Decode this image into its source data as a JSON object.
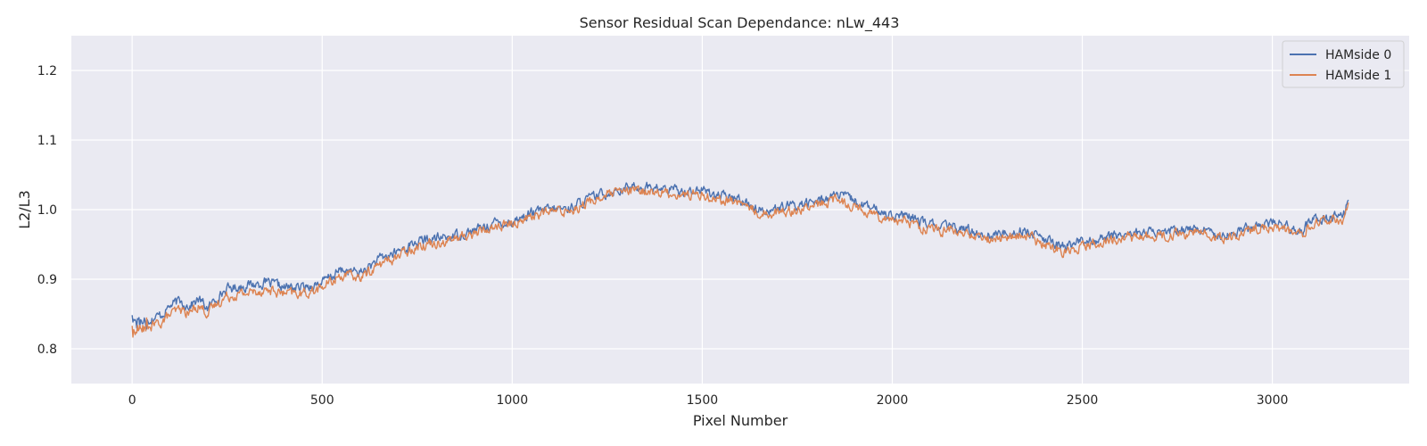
{
  "chart_data": {
    "type": "line",
    "title": "Sensor Residual Scan Dependance: nLw_443",
    "xlabel": "Pixel Number",
    "ylabel": "L2/L3",
    "xlim": [
      -160,
      3360
    ],
    "ylim": [
      0.75,
      1.25
    ],
    "xticks": [
      0,
      500,
      1000,
      1500,
      2000,
      2500,
      3000
    ],
    "yticks": [
      0.8,
      0.9,
      1.0,
      1.1,
      1.2
    ],
    "xtick_labels": [
      "0",
      "500",
      "1000",
      "1500",
      "2000",
      "2500",
      "3000"
    ],
    "ytick_labels": [
      "0.8",
      "0.9",
      "1.0",
      "1.1",
      "1.2"
    ],
    "grid": true,
    "legend_position": "top-right",
    "series": [
      {
        "name": "HAMside 0",
        "color": "#4c72b0",
        "x": [
          0,
          25,
          50,
          75,
          100,
          125,
          150,
          175,
          200,
          225,
          250,
          300,
          350,
          400,
          450,
          500,
          550,
          600,
          650,
          700,
          750,
          800,
          850,
          900,
          950,
          1000,
          1050,
          1100,
          1150,
          1200,
          1250,
          1300,
          1350,
          1400,
          1450,
          1500,
          1550,
          1600,
          1650,
          1700,
          1750,
          1800,
          1850,
          1900,
          1950,
          2000,
          2050,
          2100,
          2150,
          2200,
          2250,
          2300,
          2350,
          2400,
          2450,
          2500,
          2550,
          2600,
          2650,
          2700,
          2750,
          2800,
          2850,
          2900,
          2950,
          3000,
          3050,
          3080,
          3100,
          3150,
          3190,
          3200
        ],
        "values": [
          0.845,
          0.84,
          0.843,
          0.848,
          0.862,
          0.868,
          0.862,
          0.871,
          0.858,
          0.875,
          0.886,
          0.891,
          0.895,
          0.888,
          0.888,
          0.895,
          0.913,
          0.909,
          0.928,
          0.94,
          0.954,
          0.958,
          0.963,
          0.97,
          0.98,
          0.983,
          0.995,
          1.0,
          1.002,
          1.015,
          1.025,
          1.031,
          1.033,
          1.029,
          1.027,
          1.028,
          1.019,
          1.015,
          1.0,
          1.001,
          1.007,
          1.011,
          1.022,
          1.013,
          1.0,
          0.993,
          0.988,
          0.978,
          0.975,
          0.971,
          0.963,
          0.966,
          0.97,
          0.956,
          0.947,
          0.955,
          0.958,
          0.964,
          0.967,
          0.967,
          0.97,
          0.973,
          0.966,
          0.966,
          0.977,
          0.982,
          0.974,
          0.966,
          0.986,
          0.99,
          0.993,
          1.02
        ]
      },
      {
        "name": "HAMside 1",
        "color": "#dd8452",
        "x": [
          0,
          25,
          50,
          75,
          100,
          125,
          150,
          175,
          200,
          225,
          250,
          300,
          350,
          400,
          450,
          500,
          550,
          600,
          650,
          700,
          750,
          800,
          850,
          900,
          950,
          1000,
          1050,
          1100,
          1150,
          1200,
          1250,
          1300,
          1350,
          1400,
          1450,
          1500,
          1550,
          1600,
          1650,
          1700,
          1750,
          1800,
          1850,
          1900,
          1950,
          2000,
          2050,
          2100,
          2150,
          2200,
          2250,
          2300,
          2350,
          2400,
          2450,
          2500,
          2550,
          2600,
          2650,
          2700,
          2750,
          2800,
          2850,
          2900,
          2950,
          3000,
          3050,
          3080,
          3100,
          3150,
          3190,
          3200
        ],
        "values": [
          0.826,
          0.827,
          0.832,
          0.838,
          0.849,
          0.856,
          0.851,
          0.863,
          0.851,
          0.866,
          0.876,
          0.88,
          0.885,
          0.879,
          0.879,
          0.888,
          0.906,
          0.902,
          0.921,
          0.933,
          0.949,
          0.953,
          0.958,
          0.966,
          0.975,
          0.979,
          0.991,
          0.997,
          0.999,
          1.01,
          1.021,
          1.026,
          1.027,
          1.024,
          1.021,
          1.022,
          1.014,
          1.01,
          0.995,
          0.996,
          1.001,
          1.005,
          1.015,
          1.006,
          0.994,
          0.987,
          0.981,
          0.971,
          0.969,
          0.964,
          0.957,
          0.96,
          0.963,
          0.949,
          0.94,
          0.949,
          0.953,
          0.958,
          0.962,
          0.961,
          0.964,
          0.967,
          0.96,
          0.96,
          0.971,
          0.976,
          0.967,
          0.96,
          0.979,
          0.983,
          0.986,
          1.008
        ]
      }
    ]
  }
}
